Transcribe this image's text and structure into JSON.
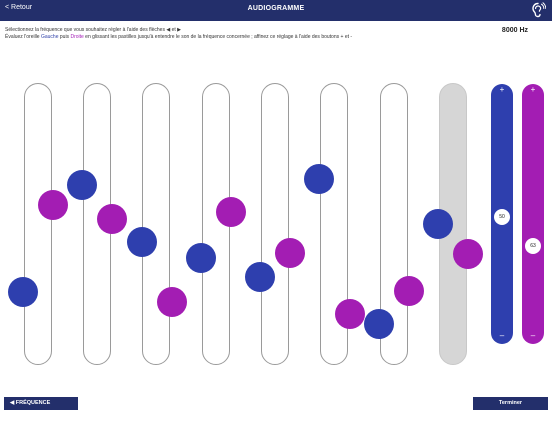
{
  "header": {
    "back_label": "< Retour",
    "title": "AUDIOGRAMME"
  },
  "instructions": {
    "line1": "Sélectionnez la fréquence que vous souhaitez régler à l'aide des flèches ◀ et ▶",
    "line2_a": "Évaluez l'oreille ",
    "gauche": "Gauche",
    "puis": " puis ",
    "droite": "Droite",
    "line2_b": " en glissant les pastilles jusqu'à entendre le son de la fréquence concernée ; affinez ce réglage à l'aide des boutons + et -"
  },
  "frequency": "8000 Hz",
  "sliders": {
    "left": {
      "plus": "+",
      "minus": "–",
      "value": "50",
      "color": "#2e3fae"
    },
    "right": {
      "plus": "+",
      "minus": "–",
      "value": "63",
      "color": "#a31db3"
    }
  },
  "buttons": {
    "previous": "◀ FRÉQUENCE PRÉCÉDENTE",
    "finish": "Terminer"
  },
  "colors": {
    "header": "#232f6b",
    "left_ear": "#2e3fae",
    "right_ear": "#a31db3"
  }
}
